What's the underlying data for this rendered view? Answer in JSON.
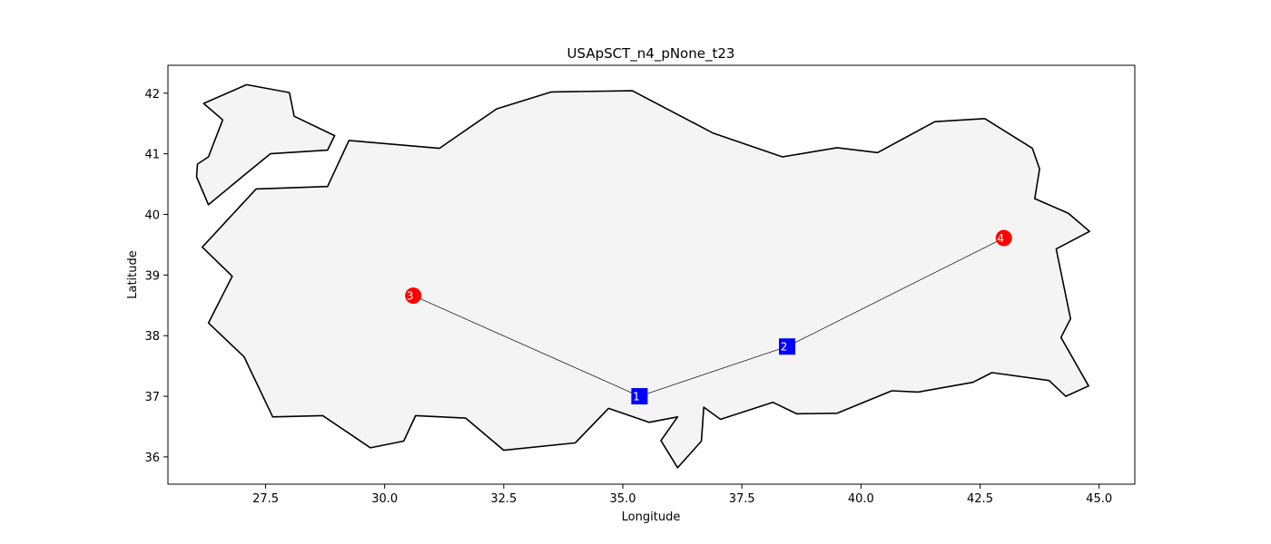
{
  "chart_data": {
    "type": "scatter",
    "title": "USApSCT_n4_pNone_t23",
    "xlabel": "Longitude",
    "ylabel": "Latitude",
    "xlim": [
      25.45,
      45.75
    ],
    "ylim": [
      35.55,
      42.46
    ],
    "grid": false,
    "x_ticks": [
      27.5,
      30.0,
      32.5,
      35.0,
      37.5,
      40.0,
      42.5,
      45.0
    ],
    "x_tick_labels": [
      "27.5",
      "30.0",
      "32.5",
      "35.0",
      "37.5",
      "40.0",
      "42.5",
      "45.0"
    ],
    "y_ticks": [
      36,
      37,
      38,
      39,
      40,
      41,
      42
    ],
    "y_tick_labels": [
      "36",
      "37",
      "38",
      "39",
      "40",
      "41",
      "42"
    ],
    "colors": {
      "map_fill": "#f4f4f4",
      "map_edge": "#000000",
      "steiner_node": "#0000ff",
      "terminal_node": "#ff0000",
      "edge": "#000000"
    },
    "outlines": [
      [
        [
          26.2,
          41.83
        ],
        [
          27.1,
          42.14
        ],
        [
          28.0,
          42.01
        ],
        [
          28.1,
          41.62
        ],
        [
          28.95,
          41.3
        ],
        [
          28.8,
          41.06
        ],
        [
          27.6,
          41.0
        ],
        [
          27.1,
          40.68
        ],
        [
          26.3,
          40.16
        ],
        [
          26.05,
          40.62
        ],
        [
          26.07,
          40.83
        ],
        [
          26.3,
          40.95
        ],
        [
          26.6,
          41.56
        ],
        [
          26.2,
          41.83
        ]
      ],
      [
        [
          29.25,
          41.22
        ],
        [
          31.15,
          41.09
        ],
        [
          32.35,
          41.74
        ],
        [
          33.5,
          42.02
        ],
        [
          35.2,
          42.04
        ],
        [
          36.9,
          41.34
        ],
        [
          38.35,
          40.95
        ],
        [
          39.5,
          41.1
        ],
        [
          40.35,
          41.02
        ],
        [
          41.55,
          41.53
        ],
        [
          42.6,
          41.58
        ],
        [
          43.6,
          41.09
        ],
        [
          43.75,
          40.75
        ],
        [
          43.65,
          40.26
        ],
        [
          44.35,
          40.02
        ],
        [
          44.8,
          39.72
        ],
        [
          44.1,
          39.43
        ],
        [
          44.4,
          38.28
        ],
        [
          44.2,
          37.97
        ],
        [
          44.78,
          37.17
        ],
        [
          44.3,
          37.0
        ],
        [
          43.95,
          37.26
        ],
        [
          42.75,
          37.39
        ],
        [
          42.35,
          37.23
        ],
        [
          41.2,
          37.07
        ],
        [
          40.65,
          37.09
        ],
        [
          39.5,
          36.72
        ],
        [
          38.65,
          36.71
        ],
        [
          38.15,
          36.9
        ],
        [
          37.05,
          36.62
        ],
        [
          36.7,
          36.82
        ],
        [
          36.65,
          36.26
        ],
        [
          36.15,
          35.82
        ],
        [
          35.8,
          36.27
        ],
        [
          36.15,
          36.66
        ],
        [
          35.55,
          36.57
        ],
        [
          34.7,
          36.8
        ],
        [
          34.0,
          36.23
        ],
        [
          32.5,
          36.11
        ],
        [
          31.7,
          36.64
        ],
        [
          30.65,
          36.68
        ],
        [
          30.4,
          36.26
        ],
        [
          29.7,
          36.15
        ],
        [
          28.7,
          36.68
        ],
        [
          27.65,
          36.66
        ],
        [
          27.05,
          37.65
        ],
        [
          26.3,
          38.21
        ],
        [
          26.8,
          38.98
        ],
        [
          26.17,
          39.46
        ],
        [
          27.3,
          40.42
        ],
        [
          28.8,
          40.46
        ],
        [
          29.25,
          41.22
        ]
      ]
    ],
    "nodes": [
      {
        "id": "1",
        "label": "1",
        "x": 35.35,
        "y": 37.0,
        "kind": "steiner"
      },
      {
        "id": "2",
        "label": "2",
        "x": 38.45,
        "y": 37.82,
        "kind": "steiner"
      },
      {
        "id": "3",
        "label": "3",
        "x": 30.6,
        "y": 38.66,
        "kind": "terminal"
      },
      {
        "id": "4",
        "label": "4",
        "x": 43.0,
        "y": 39.61,
        "kind": "terminal"
      }
    ],
    "edges": [
      [
        "3",
        "1"
      ],
      [
        "1",
        "2"
      ],
      [
        "2",
        "4"
      ]
    ]
  }
}
